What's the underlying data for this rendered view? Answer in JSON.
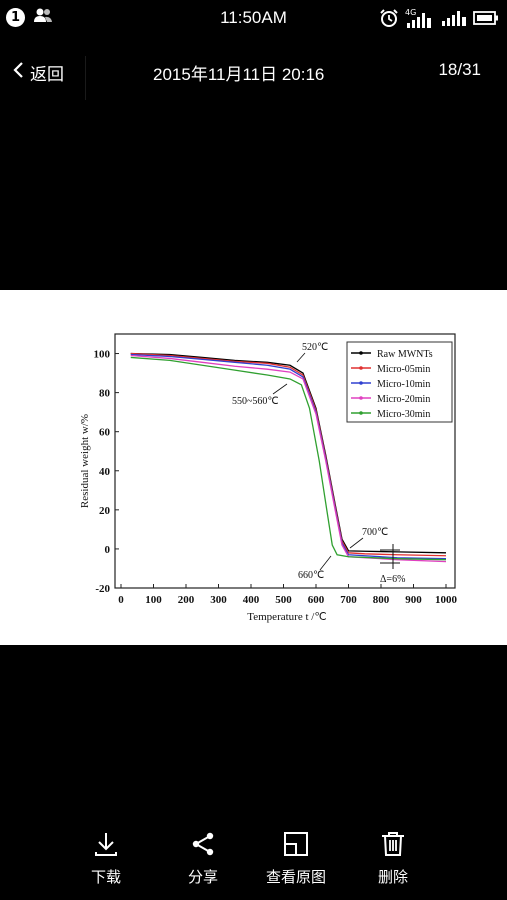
{
  "status_bar": {
    "notification_count": "1",
    "time": "11:50AM",
    "network_label": "4G"
  },
  "header": {
    "back_label": "返回",
    "date": "2015年11月11日 20:16",
    "counter": "18/31"
  },
  "toolbar": {
    "download": "下载",
    "share": "分享",
    "view_original": "查看原图",
    "delete": "删除"
  },
  "chart_data": {
    "type": "line",
    "xlabel": "Temperature t /℃",
    "ylabel": "Residual weight w/%",
    "xlim": [
      0,
      1000
    ],
    "ylim": [
      -20,
      110
    ],
    "x_ticks": [
      "0",
      "100",
      "200",
      "300",
      "400",
      "500",
      "600",
      "700",
      "800",
      "900",
      "1000"
    ],
    "y_ticks": [
      "-20",
      "0",
      "20",
      "40",
      "60",
      "80",
      "100"
    ],
    "legend_position": "top-right",
    "annotations": [
      "520℃",
      "550~560℃",
      "700℃",
      "660℃",
      "Δ=6%"
    ],
    "series": [
      {
        "name": "Raw MWNTs",
        "color": "#000000",
        "x": [
          30,
          150,
          250,
          350,
          450,
          520,
          560,
          600,
          630,
          660,
          680,
          700,
          750,
          850,
          1000
        ],
        "y": [
          100,
          99.5,
          98,
          96.5,
          95.5,
          94,
          90,
          72,
          48,
          22,
          5,
          -1,
          -1.2,
          -1.5,
          -2
        ]
      },
      {
        "name": "Micro-05min",
        "color": "#e03030",
        "x": [
          30,
          150,
          250,
          350,
          450,
          520,
          560,
          600,
          630,
          660,
          680,
          700,
          750,
          850,
          1000
        ],
        "y": [
          100,
          99,
          97.5,
          96,
          95,
          93,
          89,
          71,
          47,
          21,
          4,
          -2,
          -2.5,
          -3,
          -3.5
        ]
      },
      {
        "name": "Micro-10min",
        "color": "#3040d0",
        "x": [
          30,
          150,
          250,
          350,
          450,
          520,
          560,
          600,
          630,
          660,
          680,
          700,
          750,
          850,
          1000
        ],
        "y": [
          99.5,
          98.5,
          97,
          95.5,
          94,
          92,
          88,
          70,
          46,
          20,
          3,
          -3,
          -3.5,
          -4.5,
          -5
        ]
      },
      {
        "name": "Micro-20min",
        "color": "#e040c0",
        "x": [
          30,
          150,
          250,
          350,
          450,
          520,
          560,
          600,
          630,
          660,
          680,
          700,
          750,
          850,
          1000
        ],
        "y": [
          99,
          97.5,
          95.5,
          93.5,
          92,
          90.5,
          87,
          69,
          45,
          19,
          2,
          -4,
          -4.5,
          -5.5,
          -6.5
        ]
      },
      {
        "name": "Micro-30min",
        "color": "#30a030",
        "x": [
          30,
          150,
          250,
          350,
          450,
          520,
          555,
          580,
          610,
          635,
          650,
          665,
          700,
          850,
          1000
        ],
        "y": [
          98,
          96.5,
          94,
          91.5,
          89,
          87,
          84,
          72,
          45,
          18,
          2,
          -3,
          -4,
          -5,
          -5.5
        ]
      }
    ]
  }
}
